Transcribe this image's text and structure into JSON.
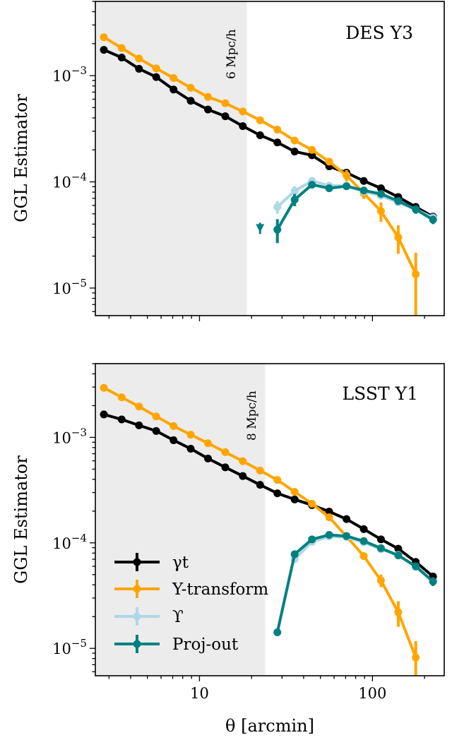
{
  "chart_data": [
    {
      "type": "line",
      "panel_label": "DES Y3",
      "scale_cut_label": "6 Mpc/h",
      "scale_cut_theta": 18.8,
      "ylabel": "GGL Estimator",
      "xlabel": "",
      "xlim": [
        2.5,
        260
      ],
      "ylim": [
        5.5e-06,
        0.005
      ],
      "xscale": "log",
      "yscale": "log",
      "grid": false,
      "x_tick_labels": [],
      "y_tick_labels": [
        {
          "value": 0.001,
          "base": "10",
          "exp": "−3"
        },
        {
          "value": 0.0001,
          "base": "10",
          "exp": "−4"
        },
        {
          "value": 1e-05,
          "base": "10",
          "exp": "−5"
        }
      ],
      "series": [
        {
          "name": "γt",
          "color": "#000000",
          "x": [
            2.8,
            3.55,
            4.47,
            5.62,
            7.08,
            8.9,
            11.2,
            14.1,
            17.8,
            22.4,
            28.2,
            35.5,
            44.7,
            56.2,
            70.8,
            89.1,
            112,
            141,
            178,
            224
          ],
          "y": [
            0.00175,
            0.00148,
            0.00116,
            0.00097,
            0.00074,
            0.00058,
            0.00048,
            0.000415,
            0.000335,
            0.000275,
            0.000235,
            0.000193,
            0.000178,
            0.00014,
            0.000122,
            0.000102,
            8.7e-05,
            7.2e-05,
            5.8e-05,
            4.7e-05
          ],
          "err": [
            0,
            0,
            0,
            0,
            0,
            0,
            0,
            0,
            0,
            0,
            0,
            0,
            0,
            0,
            6e-06,
            5e-06,
            4e-06,
            4e-06,
            5e-06,
            4e-06
          ]
        },
        {
          "name": "Y-transform",
          "color": "#FFA500",
          "x": [
            2.8,
            3.55,
            4.47,
            5.62,
            7.08,
            8.9,
            11.2,
            14.1,
            17.8,
            22.4,
            28.2,
            35.5,
            44.7,
            56.2,
            70.8,
            89.1,
            112,
            141,
            178
          ],
          "y": [
            0.0023,
            0.00182,
            0.00145,
            0.00117,
            0.00095,
            0.00077,
            0.00063,
            0.00055,
            0.00046,
            0.00038,
            0.00031,
            0.000245,
            0.0002,
            0.000155,
            0.000115,
            7.8e-05,
            5.3e-05,
            3e-05,
            1.35e-05
          ],
          "err": [
            0,
            0,
            0,
            0,
            0,
            0,
            0,
            0,
            0,
            0,
            0,
            0,
            0,
            1.2e-05,
            1.4e-05,
            9e-06,
            1.1e-05,
            9e-06,
            8e-06
          ]
        },
        {
          "name": "ϒ",
          "color": "#ADD8E6",
          "x": [
            28.2,
            35.5,
            44.7,
            56.2,
            70.8,
            89.1,
            112,
            141,
            178,
            224
          ],
          "y": [
            5.8e-05,
            8.2e-05,
            0.000102,
            9.2e-05,
            9.2e-05,
            8.1e-05,
            7.4e-05,
            6.4e-05,
            5.5e-05,
            4.6e-05
          ],
          "err": [
            8e-06,
            9e-06,
            7e-06,
            6e-06,
            5e-06,
            5e-06,
            5e-06,
            5e-06,
            5e-06,
            4e-06
          ]
        },
        {
          "name": "Proj-out",
          "color": "#008080",
          "x": [
            28.2,
            35.5,
            44.7,
            56.2,
            70.8,
            89.1,
            112,
            141,
            178,
            224
          ],
          "y": [
            3.55e-05,
            6.8e-05,
            9.4e-05,
            8.7e-05,
            9.1e-05,
            8.3e-05,
            7.7e-05,
            6.6e-05,
            5.5e-05,
            4.4e-05
          ],
          "err": [
            9e-06,
            9e-06,
            7e-06,
            6e-06,
            5e-06,
            5e-06,
            5e-06,
            5e-06,
            5e-06,
            4e-06
          ]
        }
      ],
      "markers": [
        {
          "series": "Proj-out",
          "x": 22.4,
          "y": 3.65e-05,
          "shape": "upper-limit"
        }
      ]
    },
    {
      "type": "line",
      "panel_label": "LSST Y1",
      "scale_cut_label": "8 Mpc/h",
      "scale_cut_theta": 24,
      "ylabel": "GGL Estimator",
      "xlabel": "θ [arcmin]",
      "xlim": [
        2.5,
        260
      ],
      "ylim": [
        5.5e-06,
        0.005
      ],
      "xscale": "log",
      "yscale": "log",
      "grid": false,
      "x_tick_labels": [
        {
          "value": 10,
          "label": "10"
        },
        {
          "value": 100,
          "label": "100"
        }
      ],
      "y_tick_labels": [
        {
          "value": 0.001,
          "base": "10",
          "exp": "−3"
        },
        {
          "value": 0.0001,
          "base": "10",
          "exp": "−4"
        },
        {
          "value": 1e-05,
          "base": "10",
          "exp": "−5"
        }
      ],
      "legend_position": "lower-left",
      "legend": [
        "γt",
        "Y-transform",
        "ϒ",
        "Proj-out"
      ],
      "series": [
        {
          "name": "γt",
          "color": "#000000",
          "x": [
            2.8,
            3.55,
            4.47,
            5.62,
            7.08,
            8.9,
            11.2,
            14.1,
            17.8,
            22.4,
            28.2,
            35.5,
            44.7,
            56.2,
            70.8,
            89.1,
            112,
            141,
            178,
            224
          ],
          "y": [
            0.00165,
            0.00148,
            0.0013,
            0.00115,
            0.00094,
            0.00078,
            0.00063,
            0.00052,
            0.00043,
            0.000355,
            0.000295,
            0.000258,
            0.000228,
            0.000198,
            0.000168,
            0.000135,
            0.000108,
            8.8e-05,
            6.6e-05,
            4.8e-05
          ],
          "err": [
            0,
            0,
            0,
            0,
            0,
            0,
            0,
            0,
            0,
            0,
            0,
            0,
            0,
            0,
            0,
            5e-06,
            5e-06,
            4e-06,
            4e-06,
            4e-06
          ]
        },
        {
          "name": "Y-transform",
          "color": "#FFA500",
          "x": [
            2.8,
            3.55,
            4.47,
            5.62,
            7.08,
            8.9,
            11.2,
            14.1,
            17.8,
            22.4,
            28.2,
            35.5,
            44.7,
            56.2,
            70.8,
            89.1,
            112,
            141,
            178
          ],
          "y": [
            0.00295,
            0.0024,
            0.00196,
            0.00158,
            0.00128,
            0.00106,
            0.00088,
            0.000725,
            0.000595,
            0.000485,
            0.000395,
            0.000305,
            0.000235,
            0.000175,
            0.000115,
            7.5e-05,
            4.4e-05,
            2.2e-05,
            8.2e-06
          ],
          "err": [
            0,
            0,
            0,
            0,
            0,
            0,
            0,
            0,
            0,
            0,
            0,
            0,
            0,
            0,
            0,
            6e-06,
            6e-06,
            6e-06,
            3.5e-06
          ]
        },
        {
          "name": "ϒ",
          "color": "#ADD8E6",
          "x": [
            35.5,
            44.7,
            56.2,
            70.8,
            89.1,
            112,
            141,
            178,
            224
          ],
          "y": [
            7e-05,
            0.000102,
            0.000115,
            0.000113,
            0.000101,
            8.7e-05,
            7.7e-05,
            5.9e-05,
            4.3e-05
          ],
          "err": [
            5e-06,
            5e-06,
            5e-06,
            5e-06,
            5e-06,
            4e-06,
            4e-06,
            4e-06,
            4e-06
          ]
        },
        {
          "name": "Proj-out",
          "color": "#008080",
          "x": [
            28.2,
            35.5,
            44.7,
            56.2,
            70.8,
            89.1,
            112,
            141,
            178,
            224
          ],
          "y": [
            1.42e-05,
            7.8e-05,
            0.000108,
            0.000119,
            0.000116,
            0.000104,
            8.9e-05,
            7.6e-05,
            6e-05,
            4.3e-05
          ],
          "err": [
            0,
            5e-06,
            5e-06,
            5e-06,
            5e-06,
            5e-06,
            4e-06,
            4e-06,
            4e-06,
            4e-06
          ]
        }
      ]
    }
  ]
}
